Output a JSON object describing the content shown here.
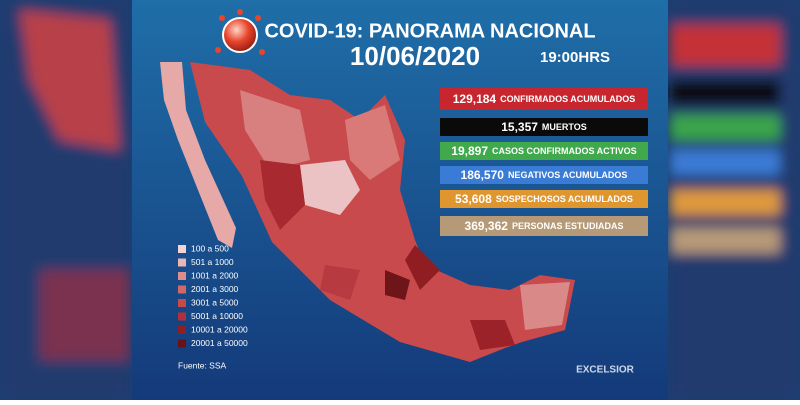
{
  "header": {
    "title": "COVID-19: PANORAMA NACIONAL",
    "date": "10/06/2020",
    "time": "19:00HRS"
  },
  "stats": [
    {
      "value": "129,184",
      "label": "CONFIRMADOS ACUMULADOS"
    },
    {
      "value": "15,357",
      "label": "MUERTOS"
    },
    {
      "value": "19,897",
      "label": "CASOS CONFIRMADOS ACTIVOS"
    },
    {
      "value": "186,570",
      "label": "NEGATIVOS ACUMULADOS"
    },
    {
      "value": "53,608",
      "label": "SOSPECHOSOS ACUMULADOS"
    },
    {
      "value": "369,362",
      "label": "PERSONAS ESTUDIADAS"
    }
  ],
  "legend": [
    "100 a 500",
    "501 a 1000",
    "1001 a 2000",
    "2001 a 3000",
    "3001 a 5000",
    "5001 a 10000",
    "10001 a 20000",
    "20001 a 50000"
  ],
  "source": "Fuente: SSA",
  "logo": "EXCELSIOR"
}
